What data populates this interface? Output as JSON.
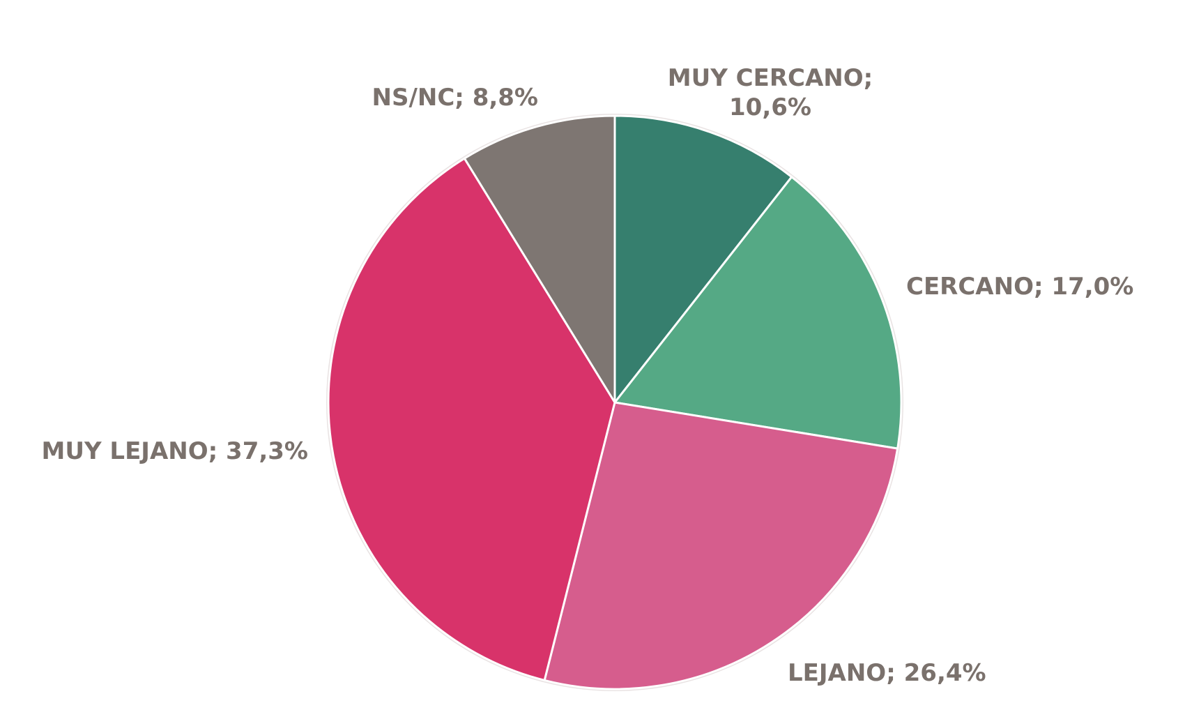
{
  "chart_data": {
    "type": "pie",
    "title": "",
    "slices": [
      {
        "label": "MUY CERCANO",
        "value": 10.6,
        "value_text": "10,6%",
        "color": "#367f6e"
      },
      {
        "label": "CERCANO",
        "value": 17.0,
        "value_text": "17,0%",
        "color": "#55a985"
      },
      {
        "label": "LEJANO",
        "value": 26.4,
        "value_text": "26,4%",
        "color": "#d65d8d"
      },
      {
        "label": "MUY LEJANO",
        "value": 37.3,
        "value_text": "37,3%",
        "color": "#d8336a"
      },
      {
        "label": "NS/NC",
        "value": 8.8,
        "value_text": "8,8%",
        "color": "#7e7672"
      }
    ],
    "start_angle": "top",
    "direction": "clockwise",
    "slice_border_color": "#ffffff"
  },
  "labels": {
    "muy_cercano_line1": "MUY CERCANO;",
    "muy_cercano_line2": "10,6%",
    "cercano": "CERCANO; 17,0%",
    "lejano": "LEJANO; 26,4%",
    "muy_lejano": "MUY LEJANO; 37,3%",
    "ns_nc": "NS/NC; 8,8%"
  }
}
